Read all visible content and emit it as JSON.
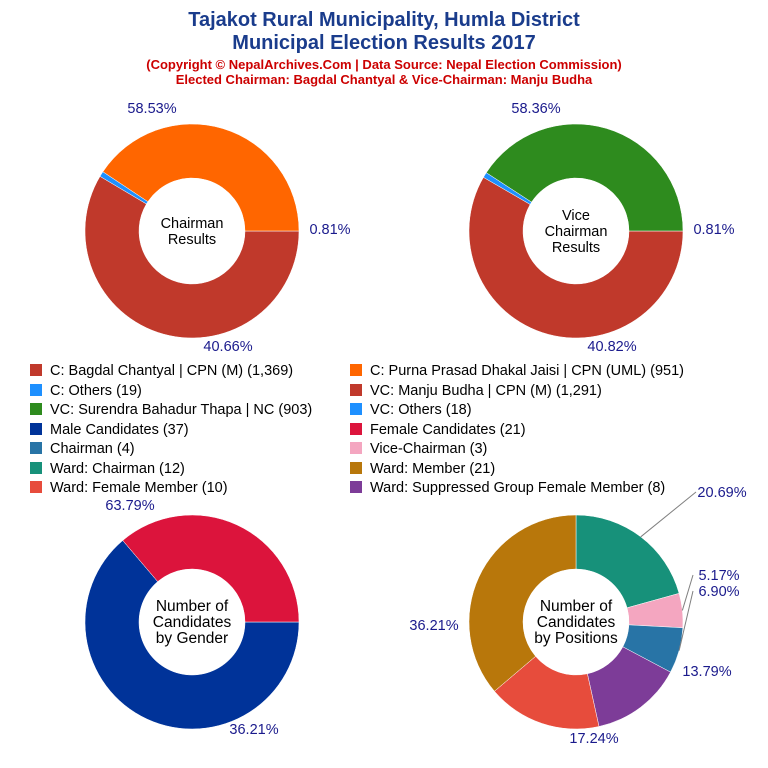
{
  "header": {
    "title_line1": "Tajakot Rural Municipality, Humla District",
    "title_line2": "Municipal Election Results 2017",
    "subtitle_line1": "(Copyright © NepalArchives.Com | Data Source: Nepal Election Commission)",
    "subtitle_line2": "Elected Chairman: Bagdal Chantyal & Vice-Chairman: Manju Budha"
  },
  "legend": [
    {
      "label": "C: Bagdal Chantyal | CPN (M) (1,369)",
      "color": "#c0392b"
    },
    {
      "label": "C: Purna Prasad Dhakal Jaisi | CPN (UML) (951)",
      "color": "#ff6600"
    },
    {
      "label": "C: Others (19)",
      "color": "#1e90ff"
    },
    {
      "label": "VC: Manju Budha | CPN (M) (1,291)",
      "color": "#c0392b"
    },
    {
      "label": "VC: Surendra Bahadur Thapa | NC (903)",
      "color": "#2e8b1e"
    },
    {
      "label": "VC: Others (18)",
      "color": "#1e90ff"
    },
    {
      "label": "Male Candidates (37)",
      "color": "#003399"
    },
    {
      "label": "Female Candidates (21)",
      "color": "#dc143c"
    },
    {
      "label": "Chairman (4)",
      "color": "#2874a6"
    },
    {
      "label": "Vice-Chairman (3)",
      "color": "#f4a6c0"
    },
    {
      "label": "Ward: Chairman (12)",
      "color": "#17917a"
    },
    {
      "label": "Ward: Member (21)",
      "color": "#b8770b"
    },
    {
      "label": "Ward: Female Member (10)",
      "color": "#e74c3c"
    },
    {
      "label": "Ward: Suppressed Group Female Member (8)",
      "color": "#7d3c98"
    }
  ],
  "chart_data": [
    {
      "type": "pie",
      "center_label": [
        "Chairman",
        "Results"
      ],
      "slices": [
        {
          "name": "C: Bagdal Chantyal | CPN (M)",
          "value": 1369,
          "label": "58.53%",
          "color": "#c0392b"
        },
        {
          "name": "C: Others",
          "value": 19,
          "label": "0.81%",
          "color": "#1e90ff"
        },
        {
          "name": "C: Purna Prasad Dhakal Jaisi | CPN (UML)",
          "value": 951,
          "label": "40.66%",
          "color": "#ff6600"
        }
      ]
    },
    {
      "type": "pie",
      "center_label": [
        "Vice",
        "Chairman",
        "Results"
      ],
      "slices": [
        {
          "name": "VC: Manju Budha | CPN (M)",
          "value": 1291,
          "label": "58.36%",
          "color": "#c0392b"
        },
        {
          "name": "VC: Others",
          "value": 18,
          "label": "0.81%",
          "color": "#1e90ff"
        },
        {
          "name": "VC: Surendra Bahadur Thapa | NC",
          "value": 903,
          "label": "40.82%",
          "color": "#2e8b1e"
        }
      ]
    },
    {
      "type": "pie",
      "center_label": [
        "Number of",
        "Candidates",
        "by Gender"
      ],
      "slices": [
        {
          "name": "Male Candidates",
          "value": 37,
          "label": "63.79%",
          "color": "#003399"
        },
        {
          "name": "Female Candidates",
          "value": 21,
          "label": "36.21%",
          "color": "#dc143c"
        }
      ]
    },
    {
      "type": "pie",
      "center_label": [
        "Number of",
        "Candidates",
        "by Positions"
      ],
      "slices": [
        {
          "name": "Ward: Chairman",
          "value": 12,
          "label": "20.69%",
          "color": "#17917a"
        },
        {
          "name": "Vice-Chairman",
          "value": 3,
          "label": "5.17%",
          "color": "#f4a6c0"
        },
        {
          "name": "Chairman",
          "value": 4,
          "label": "6.90%",
          "color": "#2874a6"
        },
        {
          "name": "Ward: Suppressed Group Female Member",
          "value": 8,
          "label": "13.79%",
          "color": "#7d3c98"
        },
        {
          "name": "Ward: Female Member",
          "value": 10,
          "label": "17.24%",
          "color": "#e74c3c"
        },
        {
          "name": "Ward: Member",
          "value": 21,
          "label": "36.21%",
          "color": "#b8770b"
        }
      ]
    }
  ]
}
